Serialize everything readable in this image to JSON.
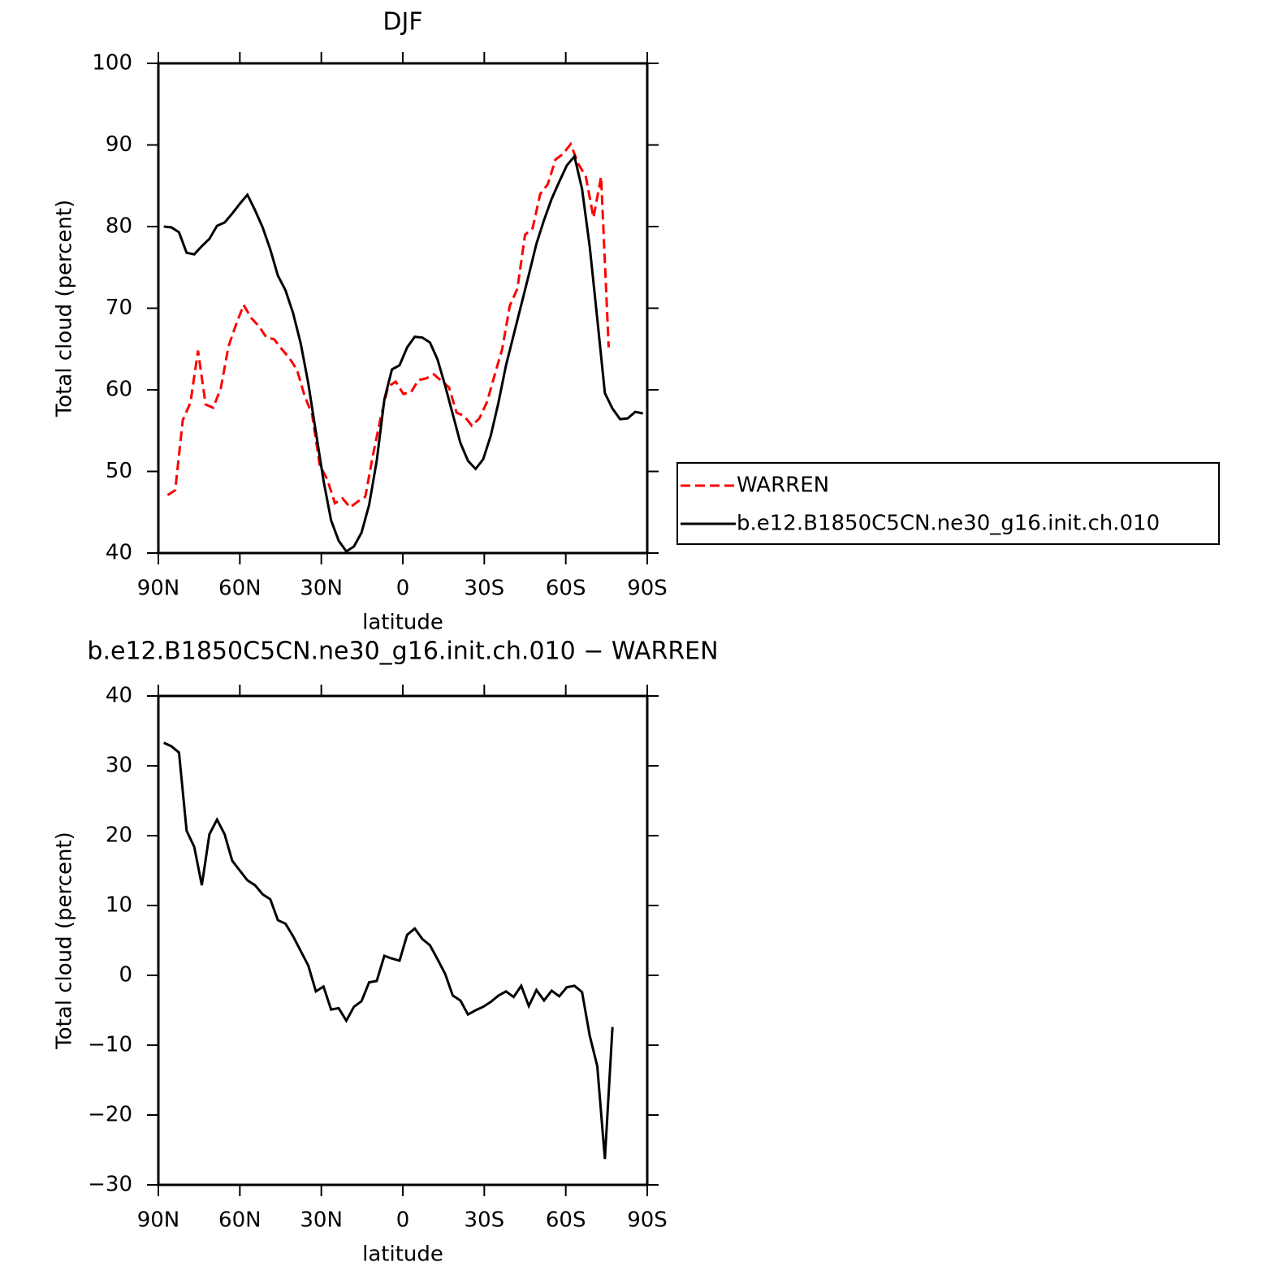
{
  "chart_data": [
    {
      "type": "line",
      "title": "DJF",
      "xlabel": "latitude",
      "ylabel": "Total cloud (percent)",
      "xlim": [
        90,
        -90
      ],
      "xticks": [
        {
          "value": 90,
          "label": "90N"
        },
        {
          "value": 60,
          "label": "60N"
        },
        {
          "value": 30,
          "label": "30N"
        },
        0,
        {
          "value": -30,
          "label": "30S"
        },
        {
          "value": -60,
          "label": "60S"
        },
        {
          "value": -90,
          "label": "90S"
        }
      ],
      "ylim": [
        40,
        100
      ],
      "yticks": [
        40,
        50,
        60,
        70,
        80,
        90,
        100
      ],
      "legend": "right",
      "series": [
        {
          "name": "WARREN",
          "color": "#ff0000",
          "dash": "dashed",
          "x": [
            86.6,
            83.8,
            81.0,
            78.2,
            75.4,
            72.6,
            69.8,
            67.0,
            64.2,
            61.4,
            58.6,
            55.8,
            53.0,
            50.2,
            47.4,
            44.6,
            41.8,
            39.0,
            36.2,
            33.4,
            30.6,
            27.8,
            25.0,
            22.2,
            19.4,
            16.6,
            13.8,
            11.0,
            8.2,
            5.4,
            2.6,
            -0.2,
            -3.0,
            -5.8,
            -8.6,
            -11.4,
            -14.2,
            -17.0,
            -19.8,
            -22.6,
            -25.4,
            -28.2,
            -31.0,
            -33.8,
            -36.6,
            -39.4,
            -42.2,
            -45.0,
            -47.8,
            -50.6,
            -53.4,
            -56.2,
            -59.0,
            -61.8,
            -64.6,
            -67.4,
            -70.2,
            -73.0,
            -75.8
          ],
          "values": [
            47.1,
            47.7,
            56.3,
            58.4,
            64.8,
            58.2,
            57.8,
            60.2,
            65.3,
            68.0,
            70.4,
            68.8,
            67.8,
            66.4,
            66.2,
            65.0,
            63.9,
            62.5,
            59.3,
            57.0,
            50.8,
            49.0,
            46.1,
            46.7,
            45.6,
            46.3,
            46.9,
            52.0,
            56.5,
            60.4,
            61.0,
            59.5,
            59.7,
            61.2,
            61.4,
            61.9,
            61.1,
            60.3,
            57.2,
            56.8,
            55.6,
            56.5,
            58.5,
            61.8,
            65.0,
            70.3,
            72.4,
            79.0,
            79.8,
            84.0,
            85.2,
            88.2,
            88.9,
            90.1,
            87.7,
            86.1,
            81.1,
            86.1,
            65.2
          ]
        },
        {
          "name": "b.e12.B1850C5CN.ne30_g16.init.ch.010",
          "color": "#000000",
          "dash": "solid",
          "x": [
            88.0,
            85.2,
            82.4,
            79.6,
            76.8,
            74.0,
            71.2,
            68.4,
            65.6,
            62.8,
            60.0,
            57.2,
            54.4,
            51.6,
            48.8,
            46.0,
            43.2,
            40.4,
            37.6,
            34.8,
            32.0,
            29.2,
            26.4,
            23.6,
            20.8,
            18.0,
            15.2,
            12.4,
            9.6,
            6.8,
            4.0,
            1.2,
            -1.6,
            -4.4,
            -7.2,
            -10.0,
            -12.8,
            -15.6,
            -18.4,
            -21.2,
            -24.0,
            -26.8,
            -29.6,
            -32.4,
            -35.2,
            -38.0,
            -40.8,
            -43.6,
            -46.4,
            -49.2,
            -52.0,
            -54.8,
            -57.6,
            -60.4,
            -63.2,
            -66.0,
            -68.8,
            -71.6,
            -74.4,
            -77.2,
            -80.0,
            -82.8,
            -85.6,
            -88.4
          ],
          "values": [
            80.0,
            79.9,
            79.3,
            76.8,
            76.6,
            77.6,
            78.5,
            80.1,
            80.5,
            81.6,
            82.8,
            83.9,
            82.0,
            79.9,
            77.2,
            74.0,
            72.2,
            69.4,
            65.7,
            60.8,
            54.8,
            48.9,
            44.0,
            41.5,
            40.2,
            40.8,
            42.5,
            45.9,
            51.3,
            58.8,
            62.5,
            63.0,
            65.2,
            66.5,
            66.4,
            65.8,
            63.7,
            60.5,
            57.0,
            53.5,
            51.3,
            50.3,
            51.5,
            54.4,
            58.4,
            63.0,
            66.7,
            70.4,
            74.1,
            77.9,
            80.8,
            83.4,
            85.5,
            87.5,
            88.6,
            84.6,
            77.6,
            68.7,
            59.6,
            57.7,
            56.4,
            56.5,
            57.3,
            57.1
          ]
        }
      ]
    },
    {
      "type": "line",
      "title": "b.e12.B1850C5CN.ne30_g16.init.ch.010 − WARREN",
      "xlabel": "latitude",
      "ylabel": "Total cloud (percent)",
      "xlim": [
        90,
        -90
      ],
      "xticks": [
        {
          "value": 90,
          "label": "90N"
        },
        {
          "value": 60,
          "label": "60N"
        },
        {
          "value": 30,
          "label": "30N"
        },
        0,
        {
          "value": -30,
          "label": "30S"
        },
        {
          "value": -60,
          "label": "60S"
        },
        {
          "value": -90,
          "label": "90S"
        }
      ],
      "ylim": [
        -30,
        40
      ],
      "yticks": [
        {
          "value": -30,
          "label": "−30"
        },
        {
          "value": -20,
          "label": "−20"
        },
        {
          "value": -10,
          "label": "−10"
        },
        0,
        10,
        20,
        30,
        40
      ],
      "series": [
        {
          "color": "#000000",
          "dash": "solid",
          "x": [
            88.0,
            85.2,
            82.4,
            79.6,
            76.8,
            74.0,
            71.2,
            68.4,
            65.6,
            62.8,
            60.0,
            57.2,
            54.4,
            51.6,
            48.8,
            46.0,
            43.2,
            40.4,
            37.6,
            34.8,
            32.0,
            29.2,
            26.4,
            23.6,
            20.8,
            18.0,
            15.2,
            12.4,
            9.6,
            6.8,
            4.0,
            1.2,
            -1.6,
            -4.4,
            -7.2,
            -10.0,
            -12.8,
            -15.6,
            -18.4,
            -21.2,
            -24.0,
            -26.8,
            -29.6,
            -32.4,
            -35.2,
            -38.0,
            -40.8,
            -43.6,
            -46.4,
            -49.2,
            -52.0,
            -54.8,
            -57.6,
            -60.4,
            -63.2,
            -66.0,
            -68.8,
            -71.6,
            -74.4,
            -77.2
          ],
          "values": [
            33.3,
            32.8,
            31.9,
            20.7,
            18.4,
            12.9,
            20.2,
            22.3,
            20.2,
            16.4,
            15.0,
            13.6,
            12.9,
            11.6,
            10.9,
            7.9,
            7.4,
            5.6,
            3.5,
            1.4,
            -2.3,
            -1.6,
            -4.9,
            -4.7,
            -6.5,
            -4.5,
            -3.7,
            -1.0,
            -0.8,
            2.8,
            2.4,
            2.1,
            5.8,
            6.7,
            5.2,
            4.3,
            2.3,
            0.2,
            -2.9,
            -3.6,
            -5.6,
            -5.0,
            -4.5,
            -3.8,
            -2.9,
            -2.3,
            -3.1,
            -1.5,
            -4.4,
            -2.1,
            -3.6,
            -2.2,
            -3.0,
            -1.7,
            -1.5,
            -2.4,
            -8.6,
            -13.0,
            -26.3,
            -7.4
          ]
        }
      ]
    }
  ]
}
